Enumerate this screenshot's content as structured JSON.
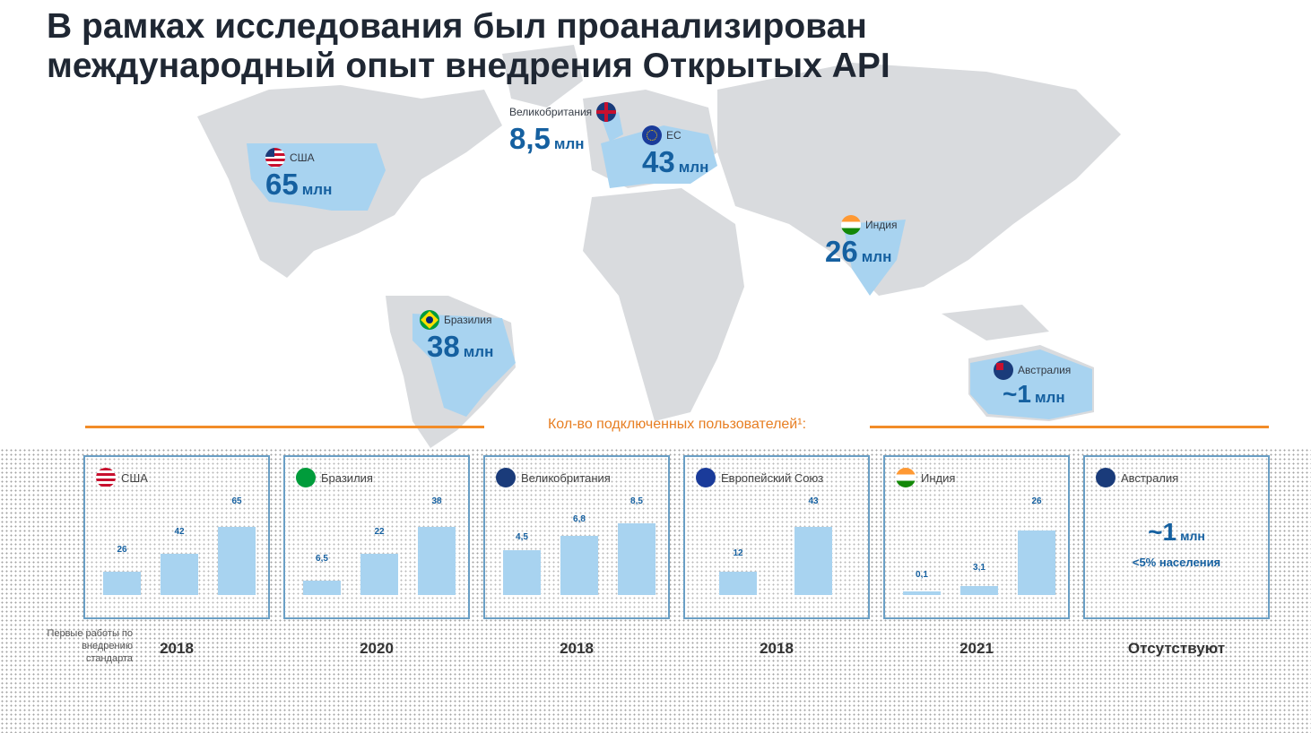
{
  "header": {
    "title_line1": "В рамках исследования был проанализирован",
    "title_line2": "международный опыт внедрения Открытых API"
  },
  "map": {
    "countries": [
      {
        "name": "США",
        "value": "65",
        "unit": "млн"
      },
      {
        "name": "Великобритания",
        "value": "8,5",
        "unit": "млн"
      },
      {
        "name": "ЕС",
        "value": "43",
        "unit": "млн"
      },
      {
        "name": "Индия",
        "value": "26",
        "unit": "млн"
      },
      {
        "name": "Бразилия",
        "value": "38",
        "unit": "млн"
      },
      {
        "name": "Австралия",
        "value": "~1",
        "unit": "млн"
      }
    ],
    "colors": {
      "highlight": "#a8d3f0",
      "land": "#d9dbde",
      "accent": "#f28c28",
      "value": "#1560a0"
    }
  },
  "section": {
    "title": "Кол-во подключенных пользователей¹:"
  },
  "cards": [
    {
      "name": "США",
      "bars": [
        {
          "label": "26"
        },
        {
          "label": "42"
        },
        {
          "label": "65"
        }
      ],
      "year": "2018"
    },
    {
      "name": "Бразилия",
      "bars": [
        {
          "label": "6,5"
        },
        {
          "label": "22"
        },
        {
          "label": "38"
        }
      ],
      "year": "2020"
    },
    {
      "name": "Великобритания",
      "bars": [
        {
          "label": "4,5"
        },
        {
          "label": "6,8"
        },
        {
          "label": "8,5"
        }
      ],
      "year": "2018"
    },
    {
      "name": "Европейский Союз",
      "bars": [
        {
          "label": "12"
        },
        {
          "label": "43"
        }
      ],
      "year": "2018"
    },
    {
      "name": "Индия",
      "bars": [
        {
          "label": "0,1"
        },
        {
          "label": "3,1"
        },
        {
          "label": "26"
        }
      ],
      "year": "2021"
    },
    {
      "name": "Австралия",
      "big": "~1",
      "unit": "млн",
      "note": "<5% населения",
      "year": "Отсутствуют"
    }
  ],
  "left_note": "Первые работы по внедрению стандарта"
}
